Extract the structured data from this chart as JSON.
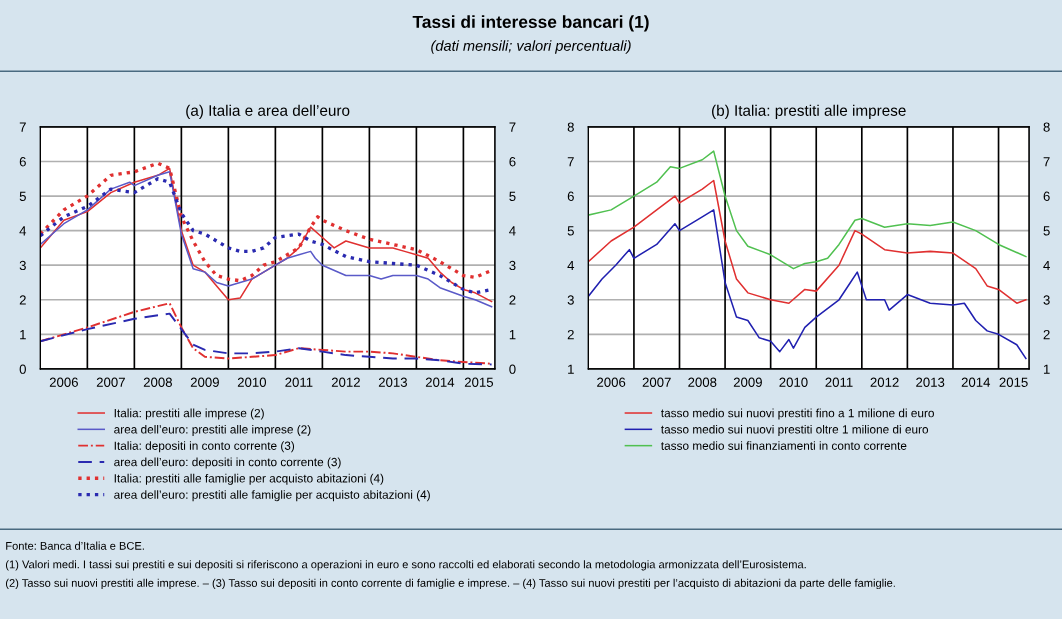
{
  "chart_data": [
    {
      "type": "line",
      "title": "(a) Italia e area dell’euro",
      "annotations": [
        "Tassi di interesse bancari (1)",
        "(dati mensili; valori percentuali)",
        "Fonte: Banca d’Italia e BCE.",
        "(1) Valori medi. I tassi sui prestiti e sui depositi si riferiscono a operazioni in euro e sono raccolti ed elaborati secondo la metodologia armonizzata dell’Eurosistema.",
        "(2) Tasso sui nuovi prestiti alle imprese. – (3) Tasso sui depositi in conto corrente di famiglie e imprese. – (4) Tasso sui nuovi prestiti per l’acquisto di abitazioni da parte delle famiglie."
      ],
      "xlim": [
        2006,
        2015.67
      ],
      "ylim": [
        0,
        7
      ],
      "yticks": [
        0,
        1,
        2,
        3,
        4,
        5,
        6,
        7
      ],
      "y2lim": [
        0,
        7
      ],
      "y2ticks": [
        0,
        1,
        2,
        3,
        4,
        5,
        6,
        7
      ],
      "xticks": [
        {
          "value": 2006.5,
          "label": "2006"
        },
        {
          "value": 2007.5,
          "label": "2007"
        },
        {
          "value": 2008.5,
          "label": "2008"
        },
        {
          "value": 2009.5,
          "label": "2009"
        },
        {
          "value": 2010.5,
          "label": "2010"
        },
        {
          "value": 2011.5,
          "label": "2011"
        },
        {
          "value": 2012.5,
          "label": "2012"
        },
        {
          "value": 2013.5,
          "label": "2013"
        },
        {
          "value": 2014.5,
          "label": "2014"
        },
        {
          "value": 2015.33,
          "label": "2015"
        }
      ],
      "ref_lines": [
        {
          "axis": "x",
          "value": 2007,
          "color": "#000000"
        },
        {
          "axis": "x",
          "value": 2008,
          "color": "#000000"
        },
        {
          "axis": "x",
          "value": 2009,
          "color": "#000000"
        },
        {
          "axis": "x",
          "value": 2010,
          "color": "#000000"
        },
        {
          "axis": "x",
          "value": 2011,
          "color": "#000000"
        },
        {
          "axis": "x",
          "value": 2012,
          "color": "#000000"
        },
        {
          "axis": "x",
          "value": 2013,
          "color": "#000000"
        },
        {
          "axis": "x",
          "value": 2014,
          "color": "#000000"
        },
        {
          "axis": "x",
          "value": 2015,
          "color": "#000000"
        }
      ],
      "grid": "y",
      "legend": "bottom",
      "series": [
        {
          "name": "Italia: prestiti alle imprese (2)",
          "color": "#e03030",
          "line_style": "solid",
          "x": [
            2006.0,
            2006.5,
            2007.0,
            2007.5,
            2008.0,
            2008.5,
            2008.75,
            2009.0,
            2009.25,
            2009.5,
            2009.75,
            2010.0,
            2010.25,
            2010.5,
            2010.75,
            2011.0,
            2011.25,
            2011.5,
            2011.75,
            2012.0,
            2012.25,
            2012.5,
            2012.75,
            2013.0,
            2013.25,
            2013.5,
            2013.75,
            2014.0,
            2014.25,
            2014.5,
            2014.75,
            2015.0,
            2015.25,
            2015.6
          ],
          "values": [
            3.5,
            4.3,
            4.55,
            5.1,
            5.4,
            5.6,
            5.8,
            4.0,
            3.0,
            2.8,
            2.4,
            2.0,
            2.05,
            2.6,
            2.8,
            3.0,
            3.2,
            3.5,
            4.1,
            3.8,
            3.5,
            3.7,
            3.6,
            3.5,
            3.5,
            3.5,
            3.4,
            3.3,
            3.2,
            2.8,
            2.5,
            2.3,
            2.2,
            1.95
          ]
        },
        {
          "name": "area dell’euro: prestiti alle imprese (2)",
          "color": "#5a5ac8",
          "line_style": "solid",
          "x": [
            2006.0,
            2006.5,
            2007.0,
            2007.5,
            2007.9,
            2008.0,
            2008.5,
            2008.75,
            2009.0,
            2009.25,
            2009.5,
            2009.75,
            2010.0,
            2010.5,
            2010.75,
            2011.0,
            2011.25,
            2011.5,
            2011.75,
            2011.85,
            2012.0,
            2012.5,
            2013.0,
            2013.25,
            2013.5,
            2014.0,
            2014.25,
            2014.5,
            2015.0,
            2015.25,
            2015.6
          ],
          "values": [
            3.6,
            4.2,
            4.6,
            5.2,
            5.4,
            5.3,
            5.6,
            5.7,
            3.9,
            2.9,
            2.8,
            2.5,
            2.4,
            2.6,
            2.8,
            3.0,
            3.2,
            3.3,
            3.4,
            3.2,
            3.0,
            2.7,
            2.7,
            2.6,
            2.7,
            2.7,
            2.6,
            2.35,
            2.1,
            2.0,
            1.8
          ]
        },
        {
          "name": "Italia: depositi in conto corrente (3)",
          "color": "#e03030",
          "line_style": "dashdot",
          "x": [
            2006.0,
            2007.0,
            2008.0,
            2008.75,
            2009.0,
            2009.25,
            2009.5,
            2010.0,
            2010.5,
            2011.0,
            2011.5,
            2012.0,
            2012.5,
            2013.0,
            2013.5,
            2014.0,
            2014.5,
            2015.0,
            2015.6
          ],
          "values": [
            0.8,
            1.2,
            1.65,
            1.9,
            1.2,
            0.6,
            0.35,
            0.3,
            0.35,
            0.4,
            0.6,
            0.55,
            0.5,
            0.5,
            0.45,
            0.35,
            0.25,
            0.2,
            0.15
          ]
        },
        {
          "name": "area dell’euro: depositi in conto corrente (3)",
          "color": "#2a2ab0",
          "line_style": "dashed",
          "x": [
            2006.0,
            2007.0,
            2008.0,
            2008.75,
            2009.0,
            2009.25,
            2009.5,
            2010.0,
            2010.5,
            2011.0,
            2011.5,
            2012.0,
            2012.5,
            2013.0,
            2013.5,
            2014.0,
            2014.5,
            2015.0,
            2015.6
          ],
          "values": [
            0.8,
            1.15,
            1.45,
            1.6,
            1.15,
            0.7,
            0.55,
            0.45,
            0.45,
            0.5,
            0.6,
            0.5,
            0.4,
            0.35,
            0.3,
            0.3,
            0.25,
            0.15,
            0.13
          ]
        },
        {
          "name": "Italia: prestiti alle famiglie per acquisto abitazioni (4)",
          "color": "#e03030",
          "line_style": "dotted",
          "x": [
            2006.0,
            2006.5,
            2007.0,
            2007.5,
            2008.0,
            2008.5,
            2008.75,
            2009.0,
            2009.25,
            2009.5,
            2009.75,
            2010.0,
            2010.25,
            2010.5,
            2010.75,
            2011.0,
            2011.5,
            2011.75,
            2011.9,
            2012.0,
            2012.5,
            2013.0,
            2013.5,
            2014.0,
            2014.5,
            2015.0,
            2015.25,
            2015.6
          ],
          "values": [
            3.9,
            4.6,
            5.0,
            5.6,
            5.7,
            5.95,
            5.8,
            4.4,
            3.7,
            3.1,
            2.7,
            2.6,
            2.55,
            2.7,
            3.0,
            3.1,
            3.5,
            4.1,
            4.4,
            4.3,
            4.0,
            3.75,
            3.6,
            3.45,
            3.1,
            2.7,
            2.65,
            2.85
          ]
        },
        {
          "name": "area dell’euro: prestiti alle famiglie per acquisto abitazioni (4)",
          "color": "#2a2ab0",
          "line_style": "dotted",
          "x": [
            2006.0,
            2006.5,
            2007.0,
            2007.5,
            2008.0,
            2008.5,
            2008.75,
            2009.0,
            2009.25,
            2009.5,
            2010.0,
            2010.25,
            2010.5,
            2010.75,
            2011.0,
            2011.5,
            2011.75,
            2012.0,
            2012.5,
            2013.0,
            2013.5,
            2014.0,
            2014.5,
            2015.0,
            2015.25,
            2015.6
          ],
          "values": [
            3.85,
            4.4,
            4.7,
            5.2,
            5.1,
            5.5,
            5.4,
            4.5,
            4.0,
            3.9,
            3.5,
            3.4,
            3.4,
            3.5,
            3.8,
            3.9,
            3.7,
            3.6,
            3.25,
            3.1,
            3.05,
            3.0,
            2.7,
            2.3,
            2.2,
            2.3
          ]
        }
      ]
    },
    {
      "type": "line",
      "title": "(b) Italia: prestiti alle imprese",
      "xlim": [
        2006,
        2015.67
      ],
      "ylim": [
        1,
        8
      ],
      "yticks": [
        1,
        2,
        3,
        4,
        5,
        6,
        7,
        8
      ],
      "y2lim": [
        1,
        8
      ],
      "y2ticks": [
        1,
        2,
        3,
        4,
        5,
        6,
        7,
        8
      ],
      "xticks": [
        {
          "value": 2006.5,
          "label": "2006"
        },
        {
          "value": 2007.5,
          "label": "2007"
        },
        {
          "value": 2008.5,
          "label": "2008"
        },
        {
          "value": 2009.5,
          "label": "2009"
        },
        {
          "value": 2010.5,
          "label": "2010"
        },
        {
          "value": 2011.5,
          "label": "2011"
        },
        {
          "value": 2012.5,
          "label": "2012"
        },
        {
          "value": 2013.5,
          "label": "2013"
        },
        {
          "value": 2014.5,
          "label": "2014"
        },
        {
          "value": 2015.33,
          "label": "2015"
        }
      ],
      "ref_lines": [
        {
          "axis": "x",
          "value": 2007,
          "color": "#000000"
        },
        {
          "axis": "x",
          "value": 2008,
          "color": "#000000"
        },
        {
          "axis": "x",
          "value": 2009,
          "color": "#000000"
        },
        {
          "axis": "x",
          "value": 2010,
          "color": "#000000"
        },
        {
          "axis": "x",
          "value": 2011,
          "color": "#000000"
        },
        {
          "axis": "x",
          "value": 2012,
          "color": "#000000"
        },
        {
          "axis": "x",
          "value": 2013,
          "color": "#000000"
        },
        {
          "axis": "x",
          "value": 2014,
          "color": "#000000"
        },
        {
          "axis": "x",
          "value": 2015,
          "color": "#000000"
        }
      ],
      "grid": "y",
      "legend": "bottom",
      "series": [
        {
          "name": "tasso medio sui nuovi prestiti fino a 1 milione di euro",
          "color": "#e03030",
          "x": [
            2006.0,
            2006.5,
            2007.0,
            2007.5,
            2007.9,
            2008.0,
            2008.5,
            2008.75,
            2009.0,
            2009.25,
            2009.5,
            2010.0,
            2010.4,
            2010.75,
            2011.0,
            2011.5,
            2011.85,
            2012.0,
            2012.5,
            2013.0,
            2013.5,
            2014.0,
            2014.5,
            2014.75,
            2015.0,
            2015.4,
            2015.6
          ],
          "values": [
            4.1,
            4.7,
            5.1,
            5.6,
            6.0,
            5.8,
            6.2,
            6.45,
            4.7,
            3.6,
            3.2,
            3.0,
            2.9,
            3.3,
            3.25,
            4.0,
            5.0,
            4.9,
            4.45,
            4.35,
            4.4,
            4.35,
            3.9,
            3.4,
            3.3,
            2.9,
            3.0
          ]
        },
        {
          "name": "tasso medio sui nuovi prestiti oltre 1 milione di euro",
          "color": "#2020b0",
          "x": [
            2006.0,
            2006.3,
            2006.6,
            2006.9,
            2007.0,
            2007.5,
            2007.9,
            2008.0,
            2008.5,
            2008.75,
            2009.0,
            2009.25,
            2009.5,
            2009.75,
            2010.0,
            2010.2,
            2010.4,
            2010.5,
            2010.75,
            2011.0,
            2011.5,
            2011.75,
            2011.9,
            2012.1,
            2012.5,
            2012.6,
            2013.0,
            2013.5,
            2014.0,
            2014.25,
            2014.5,
            2014.75,
            2015.0,
            2015.4,
            2015.6
          ],
          "values": [
            3.1,
            3.6,
            4.0,
            4.45,
            4.2,
            4.6,
            5.2,
            5.0,
            5.4,
            5.6,
            3.5,
            2.5,
            2.4,
            1.9,
            1.8,
            1.5,
            1.85,
            1.6,
            2.2,
            2.5,
            3.0,
            3.5,
            3.8,
            3.0,
            3.0,
            2.7,
            3.15,
            2.9,
            2.85,
            2.9,
            2.4,
            2.1,
            2.0,
            1.7,
            1.3
          ]
        },
        {
          "name": "tasso medio sui finanziamenti in conto corrente",
          "color": "#50c050",
          "x": [
            2006.0,
            2006.5,
            2007.0,
            2007.5,
            2007.8,
            2008.0,
            2008.5,
            2008.75,
            2009.0,
            2009.25,
            2009.5,
            2010.0,
            2010.5,
            2010.75,
            2011.0,
            2011.25,
            2011.5,
            2011.85,
            2012.0,
            2012.5,
            2013.0,
            2013.5,
            2014.0,
            2014.5,
            2015.0,
            2015.6
          ],
          "values": [
            5.45,
            5.6,
            6.0,
            6.4,
            6.85,
            6.8,
            7.05,
            7.3,
            6.0,
            5.0,
            4.55,
            4.3,
            3.9,
            4.05,
            4.1,
            4.2,
            4.6,
            5.3,
            5.35,
            5.1,
            5.2,
            5.15,
            5.25,
            5.0,
            4.6,
            4.25
          ]
        }
      ]
    }
  ]
}
